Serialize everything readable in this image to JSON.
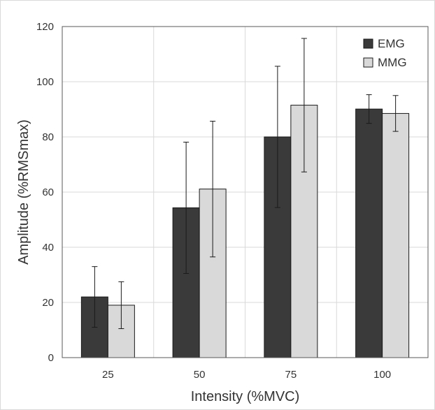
{
  "chart_data": {
    "type": "bar",
    "categories": [
      "25",
      "50",
      "75",
      "100"
    ],
    "series": [
      {
        "name": "EMG",
        "values": [
          22.0,
          54.3,
          80.0,
          90.1
        ],
        "error": [
          11.0,
          23.8,
          25.6,
          5.2
        ],
        "color": "#3a3a3a"
      },
      {
        "name": "MMG",
        "values": [
          19.0,
          61.1,
          91.5,
          88.5
        ],
        "error": [
          8.5,
          24.6,
          24.2,
          6.5
        ],
        "color": "#d9d9d9"
      }
    ],
    "xlabel": "Intensity (%MVC)",
    "ylabel": "Amplitude (%RMSmax)",
    "ylim": [
      0,
      120
    ],
    "yticks": [
      "0",
      "20",
      "40",
      "60",
      "80",
      "100",
      "120"
    ],
    "grid": true,
    "legend_position": "top-right"
  }
}
